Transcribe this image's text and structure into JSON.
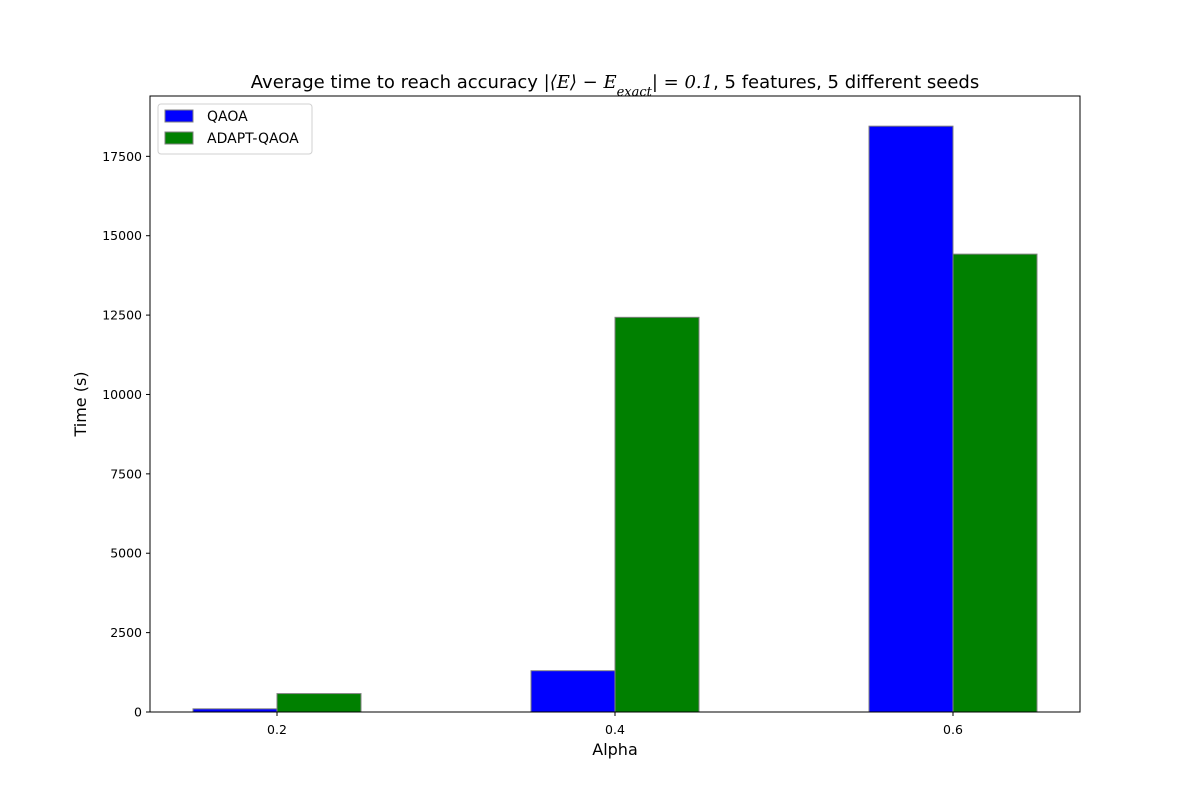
{
  "chart_data": {
    "type": "bar",
    "title_prefix": "Average time to reach accuracy ",
    "title_math": "|⟨E⟩ − E",
    "title_sub": "exact",
    "title_math_end": "| = 0.1",
    "title_suffix": ", 5 features, 5 different seeds",
    "xlabel": "Alpha",
    "ylabel": "Time (s)",
    "categories": [
      "0.2",
      "0.4",
      "0.6"
    ],
    "series": [
      {
        "name": "QAOA",
        "color": "#0000ff",
        "values": [
          100,
          1300,
          18450
        ]
      },
      {
        "name": "ADAPT-QAOA",
        "color": "#008000",
        "values": [
          580,
          12430,
          14420
        ]
      }
    ],
    "ylim": [
      0,
      19400
    ],
    "yticks": [
      0,
      2500,
      5000,
      7500,
      10000,
      12500,
      15000,
      17500
    ],
    "grid": false,
    "legend_position": "top-left",
    "bar_edge_color": "#808080"
  }
}
